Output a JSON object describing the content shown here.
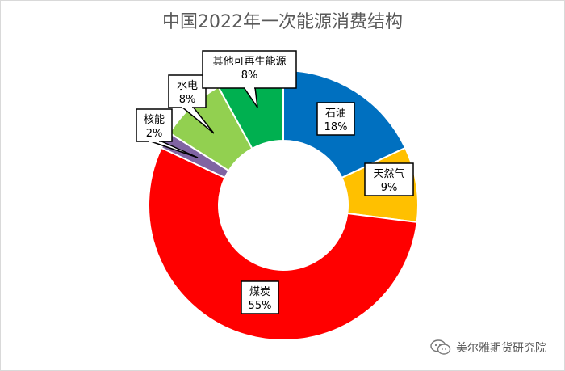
{
  "chart_data": {
    "type": "pie",
    "title": "中国2022年一次能源消费结构",
    "slices": [
      {
        "label": "石油",
        "value": 18,
        "pct": "18%",
        "color": "#0070C0"
      },
      {
        "label": "天然气",
        "value": 9,
        "pct": "9%",
        "color": "#FFC000"
      },
      {
        "label": "煤炭",
        "value": 55,
        "pct": "55%",
        "color": "#FF0000"
      },
      {
        "label": "核能",
        "value": 2,
        "pct": "2%",
        "color": "#8064A2"
      },
      {
        "label": "水电",
        "value": 8,
        "pct": "8%",
        "color": "#92D050"
      },
      {
        "label": "其他可再生能源",
        "value": 8,
        "pct": "8%",
        "color": "#00B050"
      }
    ],
    "donut": true,
    "legend": "none"
  },
  "watermark": {
    "text": "美尔雅期货研究院",
    "icon": "wechat-icon"
  }
}
